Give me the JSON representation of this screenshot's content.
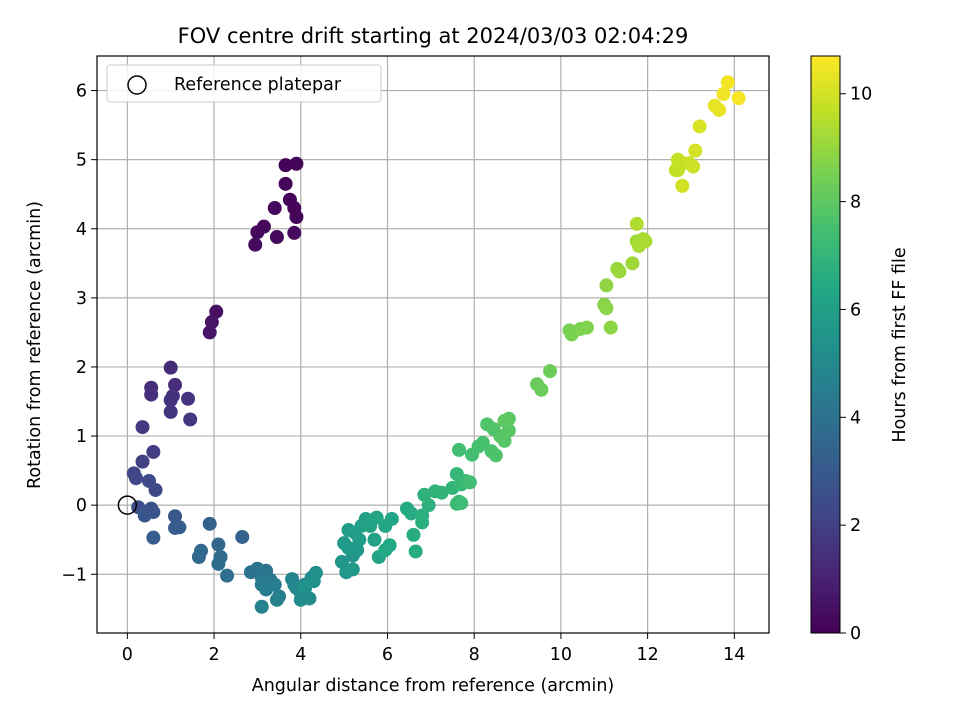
{
  "chart_data": {
    "type": "scatter",
    "title": "FOV centre drift starting at 2024/03/03 02:04:29",
    "xlabel": "Angular distance from reference (arcmin)",
    "ylabel": "Rotation from reference (arcmin)",
    "xlim": [
      -0.7,
      14.8
    ],
    "ylim": [
      -1.85,
      6.5
    ],
    "x_ticks": [
      0,
      2,
      4,
      6,
      8,
      10,
      12,
      14
    ],
    "y_ticks": [
      -1,
      0,
      1,
      2,
      3,
      4,
      5,
      6
    ],
    "grid": true,
    "legend": {
      "position": "top-left",
      "entries": [
        "Reference platepar"
      ]
    },
    "reference_point": {
      "x": 0,
      "y": 0
    },
    "colorbar": {
      "label": "Hours from first FF file",
      "colormap": "viridis",
      "range": [
        0,
        10.7
      ],
      "ticks": [
        0,
        2,
        4,
        6,
        8,
        10
      ]
    },
    "points": [
      [
        3.65,
        4.92,
        0.05
      ],
      [
        3.9,
        4.94,
        0.08
      ],
      [
        3.65,
        4.65,
        0.1
      ],
      [
        3.75,
        4.42,
        0.12
      ],
      [
        3.85,
        4.3,
        0.14
      ],
      [
        3.9,
        4.17,
        0.16
      ],
      [
        3.4,
        4.3,
        0.18
      ],
      [
        3.15,
        4.03,
        0.2
      ],
      [
        3.0,
        3.95,
        0.22
      ],
      [
        3.45,
        3.88,
        0.24
      ],
      [
        3.85,
        3.94,
        0.26
      ],
      [
        2.95,
        3.77,
        0.28
      ],
      [
        2.05,
        2.8,
        0.5
      ],
      [
        1.95,
        2.65,
        0.55
      ],
      [
        1.9,
        2.5,
        0.6
      ],
      [
        1.0,
        1.99,
        1.3
      ],
      [
        1.1,
        1.74,
        1.35
      ],
      [
        0.55,
        1.7,
        1.4
      ],
      [
        0.55,
        1.6,
        1.45
      ],
      [
        1.05,
        1.58,
        1.5
      ],
      [
        1.0,
        1.52,
        1.55
      ],
      [
        1.4,
        1.54,
        1.6
      ],
      [
        1.0,
        1.35,
        1.65
      ],
      [
        1.45,
        1.24,
        1.7
      ],
      [
        0.35,
        1.13,
        1.8
      ],
      [
        0.6,
        0.77,
        1.95
      ],
      [
        0.35,
        0.63,
        2.05
      ],
      [
        0.15,
        0.46,
        2.15
      ],
      [
        0.2,
        0.39,
        2.2
      ],
      [
        0.5,
        0.35,
        2.3
      ],
      [
        0.65,
        0.22,
        2.4
      ],
      [
        0.25,
        -0.03,
        2.55
      ],
      [
        0.55,
        -0.05,
        2.65
      ],
      [
        0.6,
        -0.1,
        2.75
      ],
      [
        0.4,
        -0.15,
        2.85
      ],
      [
        1.1,
        -0.16,
        2.95
      ],
      [
        1.1,
        -0.33,
        3.05
      ],
      [
        1.2,
        -0.32,
        3.1
      ],
      [
        0.6,
        -0.47,
        3.15
      ],
      [
        1.9,
        -0.27,
        3.3
      ],
      [
        2.65,
        -0.46,
        3.4
      ],
      [
        2.1,
        -0.57,
        3.5
      ],
      [
        1.7,
        -0.66,
        3.6
      ],
      [
        1.65,
        -0.75,
        3.65
      ],
      [
        2.15,
        -0.75,
        3.7
      ],
      [
        2.1,
        -0.85,
        3.8
      ],
      [
        2.3,
        -1.02,
        3.9
      ],
      [
        2.85,
        -0.97,
        4.0
      ],
      [
        3.0,
        -0.92,
        4.05
      ],
      [
        3.2,
        -0.95,
        4.1
      ],
      [
        3.1,
        -1.05,
        4.2
      ],
      [
        3.3,
        -1.08,
        4.3
      ],
      [
        3.1,
        -1.15,
        4.35
      ],
      [
        3.2,
        -1.22,
        4.4
      ],
      [
        3.4,
        -1.15,
        4.5
      ],
      [
        3.5,
        -1.32,
        4.6
      ],
      [
        3.45,
        -1.37,
        4.65
      ],
      [
        3.1,
        -1.47,
        4.7
      ],
      [
        3.8,
        -1.07,
        4.8
      ],
      [
        3.85,
        -1.15,
        4.85
      ],
      [
        3.9,
        -1.2,
        4.9
      ],
      [
        4.1,
        -1.15,
        5.0
      ],
      [
        4.0,
        -1.27,
        5.05
      ],
      [
        4.2,
        -1.35,
        5.1
      ],
      [
        4.0,
        -1.37,
        5.15
      ],
      [
        4.25,
        -1.05,
        5.2
      ],
      [
        4.35,
        -0.98,
        5.3
      ],
      [
        4.3,
        -1.1,
        5.35
      ],
      [
        4.1,
        -1.2,
        5.4
      ],
      [
        4.95,
        -0.82,
        5.5
      ],
      [
        5.2,
        -0.73,
        5.55
      ],
      [
        5.3,
        -0.65,
        5.6
      ],
      [
        5.05,
        -0.97,
        5.65
      ],
      [
        5.2,
        -0.93,
        5.7
      ],
      [
        5.0,
        -0.55,
        5.75
      ],
      [
        5.1,
        -0.62,
        5.8
      ],
      [
        5.35,
        -0.5,
        5.85
      ],
      [
        5.1,
        -0.36,
        5.9
      ],
      [
        5.25,
        -0.4,
        5.95
      ],
      [
        5.4,
        -0.3,
        6.0
      ],
      [
        5.5,
        -0.2,
        6.05
      ],
      [
        5.7,
        -0.5,
        6.1
      ],
      [
        5.8,
        -0.75,
        6.15
      ],
      [
        5.6,
        -0.3,
        6.2
      ],
      [
        5.75,
        -0.18,
        6.25
      ],
      [
        5.95,
        -0.3,
        6.3
      ],
      [
        6.1,
        -0.2,
        6.35
      ],
      [
        6.05,
        -0.58,
        6.4
      ],
      [
        5.95,
        -0.65,
        6.45
      ],
      [
        6.45,
        -0.05,
        6.5
      ],
      [
        6.55,
        -0.12,
        6.55
      ],
      [
        6.6,
        -0.43,
        6.6
      ],
      [
        6.65,
        -0.67,
        6.65
      ],
      [
        6.8,
        -0.15,
        6.7
      ],
      [
        6.8,
        -0.25,
        6.75
      ],
      [
        6.95,
        0.0,
        6.8
      ],
      [
        6.85,
        0.15,
        6.85
      ],
      [
        7.1,
        0.2,
        6.9
      ],
      [
        7.25,
        0.18,
        6.95
      ],
      [
        7.5,
        0.25,
        7.0
      ],
      [
        7.6,
        0.45,
        7.05
      ],
      [
        7.7,
        0.3,
        7.1
      ],
      [
        7.65,
        0.05,
        7.15
      ],
      [
        7.8,
        0.35,
        7.2
      ],
      [
        7.6,
        0.02,
        7.25
      ],
      [
        7.7,
        0.03,
        7.3
      ],
      [
        7.9,
        0.33,
        7.35
      ],
      [
        7.65,
        0.8,
        7.4
      ],
      [
        7.95,
        0.73,
        7.45
      ],
      [
        8.1,
        0.85,
        7.5
      ],
      [
        8.2,
        0.9,
        7.55
      ],
      [
        8.4,
        0.78,
        7.6
      ],
      [
        8.5,
        0.72,
        7.65
      ],
      [
        8.3,
        1.17,
        7.7
      ],
      [
        8.45,
        1.1,
        7.75
      ],
      [
        8.6,
        1.0,
        7.8
      ],
      [
        8.7,
        0.93,
        7.85
      ],
      [
        8.8,
        1.08,
        7.9
      ],
      [
        8.8,
        1.25,
        7.95
      ],
      [
        8.7,
        1.22,
        8.0
      ],
      [
        9.45,
        1.75,
        8.2
      ],
      [
        9.55,
        1.67,
        8.25
      ],
      [
        9.75,
        1.94,
        8.3
      ],
      [
        10.2,
        2.53,
        8.5
      ],
      [
        10.25,
        2.47,
        8.55
      ],
      [
        10.45,
        2.55,
        8.6
      ],
      [
        10.6,
        2.57,
        8.65
      ],
      [
        11.0,
        2.9,
        8.75
      ],
      [
        11.05,
        2.85,
        8.8
      ],
      [
        11.15,
        2.57,
        8.85
      ],
      [
        11.05,
        3.18,
        8.9
      ],
      [
        11.3,
        3.42,
        9.0
      ],
      [
        11.35,
        3.38,
        9.05
      ],
      [
        11.65,
        3.5,
        9.15
      ],
      [
        11.75,
        3.82,
        9.2
      ],
      [
        11.9,
        3.85,
        9.25
      ],
      [
        11.8,
        3.75,
        9.3
      ],
      [
        11.95,
        3.82,
        9.35
      ],
      [
        11.75,
        4.07,
        9.4
      ],
      [
        12.65,
        4.85,
        9.7
      ],
      [
        12.7,
        5.0,
        9.75
      ],
      [
        12.8,
        4.95,
        9.8
      ],
      [
        12.95,
        4.95,
        9.85
      ],
      [
        13.05,
        4.9,
        9.9
      ],
      [
        12.8,
        4.62,
        9.95
      ],
      [
        13.1,
        5.13,
        10.0
      ],
      [
        13.2,
        5.48,
        10.1
      ],
      [
        13.55,
        5.78,
        10.3
      ],
      [
        13.65,
        5.72,
        10.35
      ],
      [
        13.75,
        5.95,
        10.45
      ],
      [
        13.85,
        6.12,
        10.55
      ],
      [
        14.1,
        5.89,
        10.6
      ],
      [
        12.7,
        4.85,
        9.72
      ]
    ]
  }
}
